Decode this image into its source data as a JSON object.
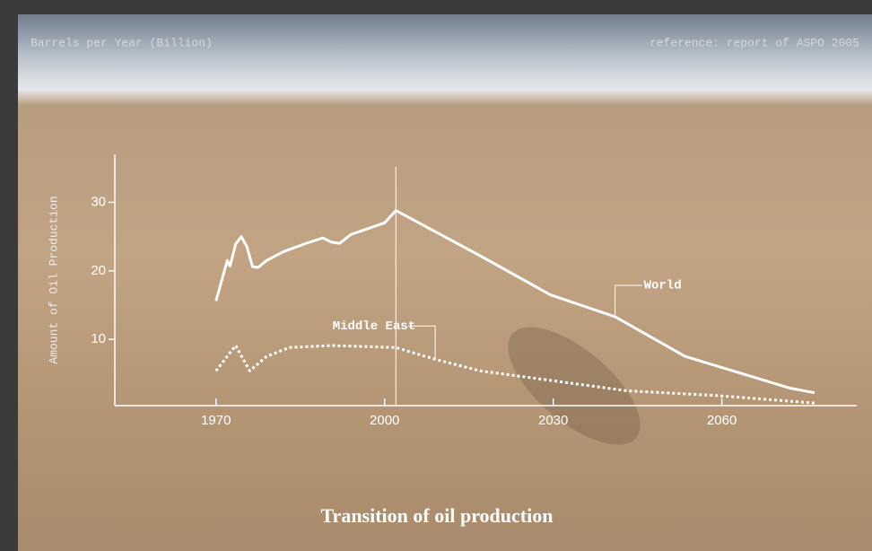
{
  "chart_data": {
    "type": "line",
    "title": "Transition of oil production",
    "subtitle": "Barrels per Year (Billion)",
    "source": "reference: report of ASPO 2005",
    "y_label": "Amount of Oil Production",
    "xlim": [
      1952,
      2084
    ],
    "xticks": [
      1970,
      2000,
      2030,
      2060
    ],
    "ylim": [
      0,
      37
    ],
    "yticks": [
      10,
      20,
      30
    ],
    "marker_x": 2002,
    "series": [
      {
        "name": "World",
        "color": "#ffffff",
        "dash": false,
        "x": [
          1970,
          1972,
          1972.5,
          1973.5,
          1974.5,
          1975.5,
          1976.5,
          1977.5,
          1979,
          1982,
          1986,
          1989,
          1990.5,
          1992,
          1994,
          2000,
          2002,
          2017,
          2029.5,
          2041,
          2053.5,
          2072,
          2076.5
        ],
        "values": [
          15.6,
          21.5,
          20.7,
          23.9,
          25.0,
          23.5,
          20.6,
          20.5,
          21.5,
          22.8,
          24.0,
          24.8,
          24.2,
          24.0,
          25.3,
          27.0,
          28.8,
          22.2,
          16.5,
          13.3,
          7.5,
          2.9,
          2.2
        ]
      },
      {
        "name": "Middle East",
        "color": "#ffffff",
        "dash": true,
        "x": [
          1970,
          1973.5,
          1976,
          1979,
          1983,
          1990.5,
          2002,
          2009,
          2017,
          2030.5,
          2043,
          2059,
          2076.5
        ],
        "values": [
          5.4,
          9.1,
          5.4,
          7.5,
          8.8,
          9.1,
          8.8,
          7.1,
          5.4,
          3.9,
          2.5,
          1.8,
          0.7
        ]
      }
    ]
  }
}
